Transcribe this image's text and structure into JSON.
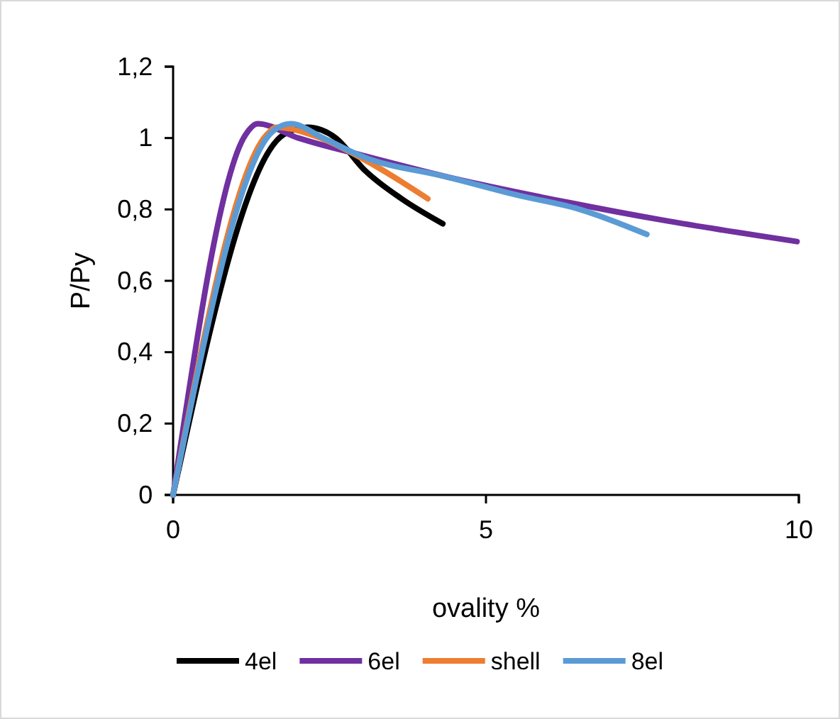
{
  "chart_data": {
    "type": "line",
    "xlabel": "ovality %",
    "ylabel": "P/Py",
    "xlim": [
      0,
      10
    ],
    "ylim": [
      0,
      1.2
    ],
    "xticks": [
      0,
      5,
      10
    ],
    "yticks": [
      0,
      {
        "value": 0.2,
        "label": "0,2"
      },
      {
        "value": 0.4,
        "label": "0,4"
      },
      {
        "value": 0.6,
        "label": "0,6"
      },
      {
        "value": 0.8,
        "label": "0,8"
      },
      1,
      {
        "value": 1.2,
        "label": "1,2"
      }
    ],
    "legend": "bottom",
    "marker": "none",
    "line_style": "solid",
    "grid": false,
    "series": [
      {
        "name": "4el",
        "color": "#000000",
        "x": [
          0,
          1.77,
          2.15,
          2.6,
          3.06,
          3.65,
          4.31
        ],
        "values": [
          0,
          1.01,
          1.03,
          1.0,
          0.91,
          0.83,
          0.76
        ]
      },
      {
        "name": "6el",
        "color": "#7030a0",
        "x": [
          0,
          1.16,
          1.35,
          2.0,
          3.06,
          4.41,
          6.3,
          7.82,
          9.97
        ],
        "values": [
          0,
          1.01,
          1.04,
          1.0,
          0.95,
          0.89,
          0.82,
          0.77,
          0.71
        ]
      },
      {
        "name": "shell",
        "color": "#ed7d31",
        "x": [
          0,
          1.5,
          1.65,
          2.2,
          3.05,
          4.07
        ],
        "values": [
          0,
          1.01,
          1.03,
          1.01,
          0.94,
          0.83
        ]
      },
      {
        "name": "8el",
        "color": "#5b9bd5",
        "x": [
          0,
          1.6,
          1.88,
          2.4,
          3.0,
          4.4,
          5.5,
          6.5,
          7.57
        ],
        "values": [
          0,
          1.02,
          1.04,
          1.0,
          0.95,
          0.89,
          0.84,
          0.8,
          0.73
        ]
      }
    ]
  }
}
